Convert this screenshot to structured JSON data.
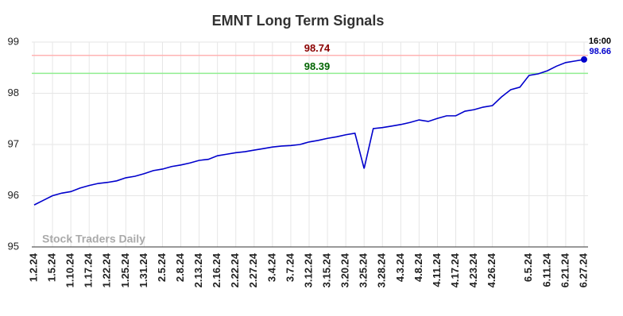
{
  "chart_data": {
    "type": "line",
    "title": "EMNT Long Term Signals",
    "categories": [
      "1.2.24",
      null,
      "1.5.24",
      null,
      "1.10.24",
      null,
      "1.17.24",
      null,
      "1.22.24",
      null,
      "1.25.24",
      null,
      "1.31.24",
      null,
      "2.5.24",
      null,
      "2.8.24",
      null,
      "2.13.24",
      null,
      "2.16.24",
      null,
      "2.22.24",
      null,
      "2.27.24",
      null,
      "3.4.24",
      null,
      "3.7.24",
      null,
      "3.12.24",
      null,
      "3.15.24",
      null,
      "3.20.24",
      null,
      "3.25.24",
      null,
      "3.28.24",
      null,
      "4.3.24",
      null,
      "4.8.24",
      null,
      "4.11.24",
      null,
      "4.17.24",
      null,
      "4.23.24",
      null,
      "4.26.24",
      null,
      null,
      null,
      "6.5.24",
      null,
      "6.11.24",
      null,
      "6.21.24",
      null,
      "6.27.24"
    ],
    "values": [
      95.82,
      95.91,
      96.0,
      96.05,
      96.08,
      96.15,
      96.2,
      96.24,
      96.26,
      96.29,
      96.35,
      96.38,
      96.43,
      96.49,
      96.52,
      96.57,
      96.6,
      96.64,
      96.69,
      96.71,
      96.78,
      96.81,
      96.84,
      96.86,
      96.89,
      96.92,
      96.95,
      96.97,
      96.98,
      97.0,
      97.05,
      97.08,
      97.12,
      97.15,
      97.19,
      97.22,
      96.53,
      97.31,
      97.33,
      97.36,
      97.39,
      97.43,
      97.48,
      97.45,
      97.51,
      97.56,
      97.56,
      97.65,
      97.68,
      97.73,
      97.76,
      97.93,
      98.07,
      98.12,
      98.35,
      98.38,
      98.44,
      98.53,
      98.6,
      98.63,
      98.66
    ],
    "color": "#0000cc",
    "reference_lines": [
      {
        "value": 98.74,
        "color": "#ffb3b3",
        "label_color": "#8b0000"
      },
      {
        "value": 98.39,
        "color": "#90ee90",
        "label_color": "#006400"
      }
    ],
    "last_time": "16:00",
    "watermark": "Stock Traders Daily",
    "ylim": [
      95,
      99
    ],
    "yticks": [
      95,
      96,
      97,
      98,
      99
    ],
    "grid": true
  }
}
